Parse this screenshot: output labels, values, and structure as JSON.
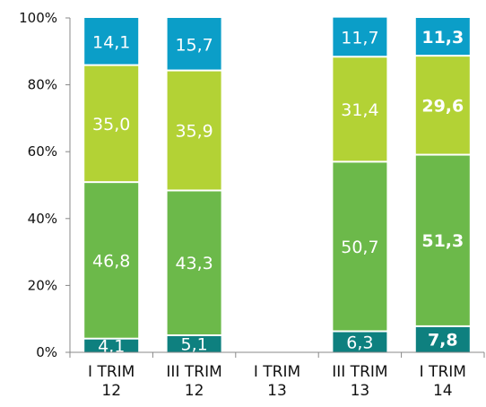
{
  "chart_data": {
    "type": "bar",
    "stacked": true,
    "percent_stacked": true,
    "categories": [
      [
        "I TRIM",
        "12"
      ],
      [
        "III TRIM",
        "12"
      ],
      [
        "I TRIM",
        "13"
      ],
      [
        "III TRIM",
        "13"
      ],
      [
        "I TRIM",
        "14"
      ]
    ],
    "series": [
      {
        "color": "#0e807f",
        "values": [
          4.1,
          5.1,
          null,
          6.3,
          7.8
        ],
        "labels": [
          "4,1",
          "5,1",
          "",
          "6,3",
          "7,8"
        ]
      },
      {
        "color": "#6cb94a",
        "values": [
          46.8,
          43.3,
          null,
          50.7,
          51.3
        ],
        "labels": [
          "46,8",
          "43,3",
          "",
          "50,7",
          "51,3"
        ]
      },
      {
        "color": "#b3d235",
        "values": [
          35.0,
          35.9,
          null,
          31.4,
          29.6
        ],
        "labels": [
          "35,0",
          "35,9",
          "",
          "31,4",
          "29,6"
        ]
      },
      {
        "color": "#0b9ec8",
        "values": [
          14.1,
          15.7,
          null,
          11.7,
          11.3
        ],
        "labels": [
          "14,1",
          "15,7",
          "",
          "11,7",
          "11,3"
        ]
      }
    ],
    "bold_categories": [
      4
    ],
    "yticks": [
      "0%",
      "20%",
      "40%",
      "60%",
      "80%",
      "100%"
    ],
    "ylim": [
      0,
      100
    ],
    "grid": false
  }
}
